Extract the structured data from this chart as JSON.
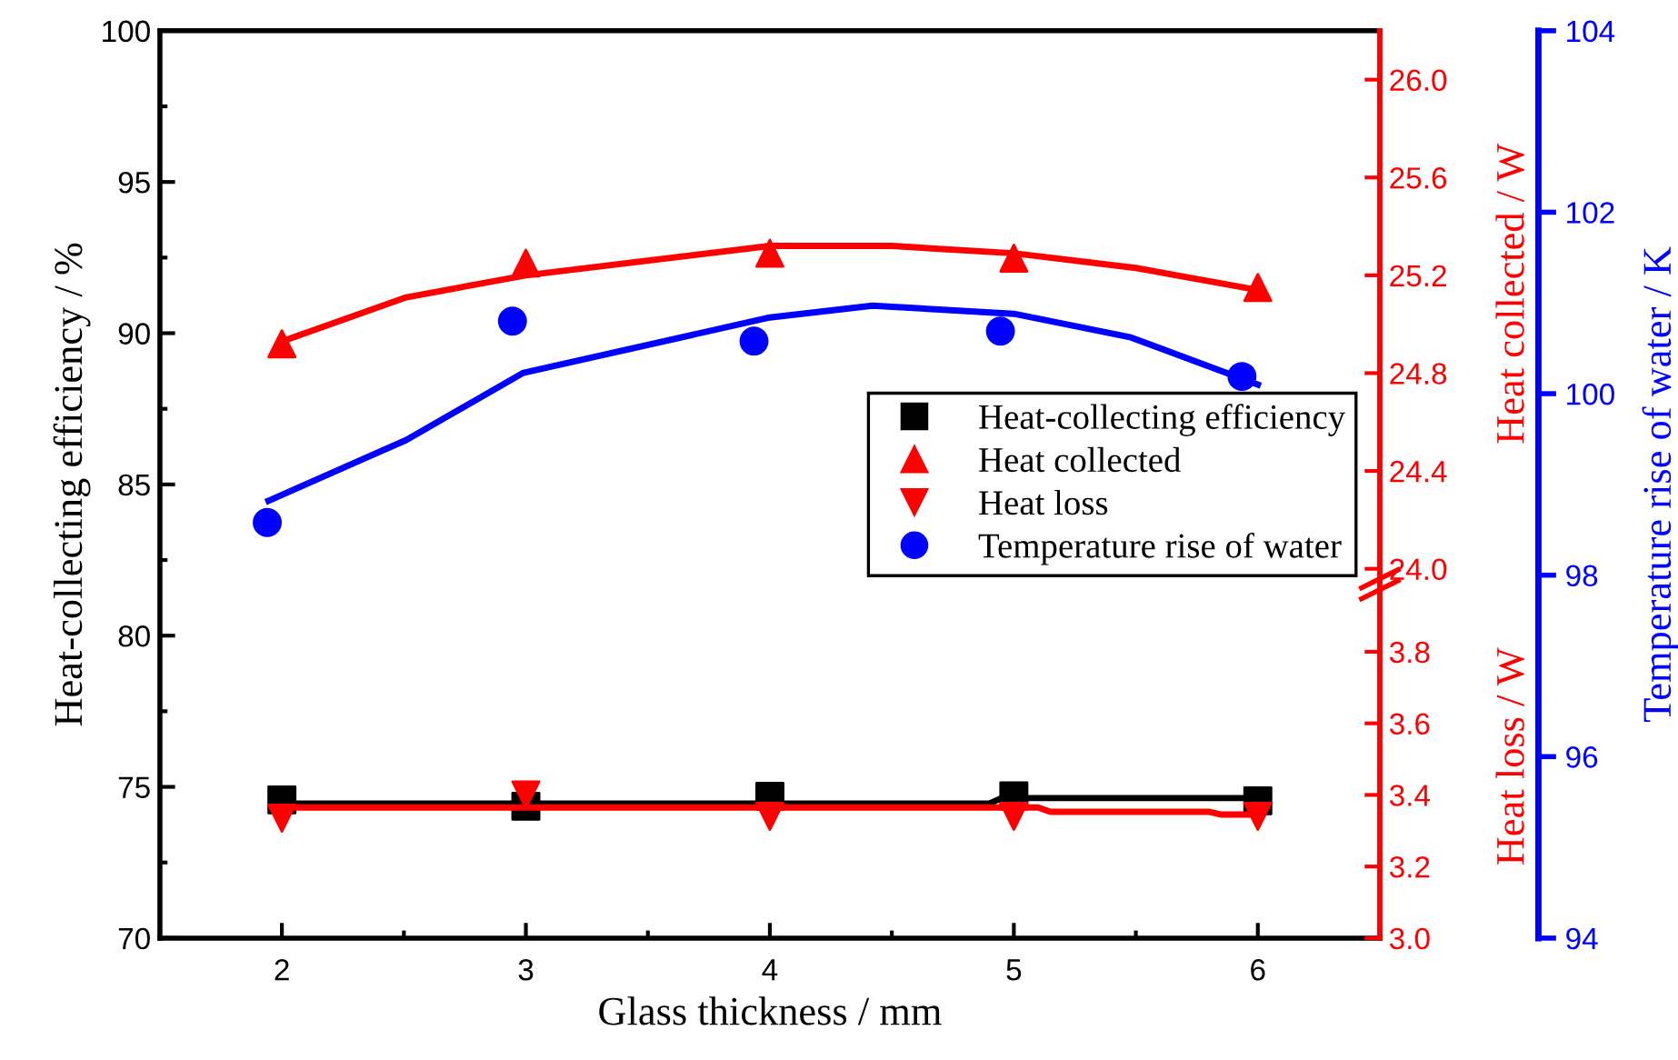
{
  "chart_data": [
    {
      "type": "scatter",
      "xlabel": "Glass thickness / mm",
      "ylabel": "Heat-collecting efficiency / %",
      "y2label": "Heat collected / W",
      "y3label": "Temperature rise of water / K",
      "xlim": [
        1.5,
        6.5
      ],
      "xticks": [
        2,
        {
          "value": 2.5,
          "label": null
        },
        3,
        {
          "value": 3.5,
          "label": null
        },
        4,
        {
          "value": 4.5,
          "label": null
        },
        5,
        {
          "value": 5.5,
          "label": null
        },
        6
      ],
      "ylim": [
        70,
        100
      ],
      "yticks": [
        70,
        {
          "value": 72.5,
          "label": null
        },
        75,
        {
          "value": 77.5,
          "label": null
        },
        80,
        {
          "value": 82.5,
          "label": null
        },
        85,
        {
          "value": 87.5,
          "label": null
        },
        90,
        {
          "value": 92.5,
          "label": null
        },
        95,
        {
          "value": 97.5,
          "label": null
        },
        100
      ],
      "y2lim": [
        22.49,
        26.2
      ],
      "y2ticks": [
        {
          "value": 24,
          "label": "24.0"
        },
        24.4,
        24.8,
        25.2,
        25.6,
        {
          "value": 26,
          "label": "26.0"
        }
      ],
      "y3lim": [
        94,
        104
      ],
      "y3ticks": [
        94,
        96,
        98,
        100,
        102,
        104
      ],
      "legend": "center right",
      "series": [
        {
          "name": "Heat-collecting efficiency",
          "type": "scatter",
          "marker": "square",
          "color": "#000000",
          "x": [
            2,
            3,
            4,
            5,
            6
          ],
          "values": [
            74.57,
            74.36,
            74.69,
            74.7,
            74.54
          ]
        },
        {
          "name": "Heat collected",
          "type": "scatter",
          "marker": "triangle",
          "color": "#ff0000",
          "axis": "y2",
          "x": [
            2,
            3,
            4,
            5,
            6
          ],
          "values": [
            24.92,
            25.25,
            25.29,
            25.27,
            25.15
          ]
        },
        {
          "name": "Temperature rise of water",
          "type": "scatter",
          "marker": "circle",
          "color": "#0000ff",
          "axis": "y3",
          "x": [
            1.94,
            2.945,
            3.935,
            4.945,
            5.935
          ],
          "values": [
            98.58,
            100.8,
            100.58,
            100.69,
            100.19
          ]
        },
        {
          "type": "line",
          "color": "#000000",
          "x": [
            2,
            4.9,
            4.95,
            6
          ],
          "values": [
            74.45,
            74.45,
            74.63,
            74.63
          ]
        },
        {
          "type": "line",
          "color": "#ff0000",
          "axis": "y2",
          "x": [
            2,
            2.51,
            3,
            4,
            4.5,
            5,
            5.5,
            6
          ],
          "values": [
            24.93,
            25.11,
            25.2,
            25.32,
            25.32,
            25.29,
            25.23,
            25.14
          ]
        },
        {
          "type": "line",
          "color": "#0000ff",
          "axis": "y3",
          "x": [
            1.945,
            2.51,
            2.99,
            4,
            4.42,
            5,
            5.48,
            6
          ],
          "values": [
            98.82,
            99.49,
            100.23,
            100.84,
            100.97,
            100.88,
            100.62,
            100.1
          ]
        }
      ]
    },
    {
      "type": "scatter",
      "ylabel": "Heat loss / W",
      "xlim": [
        1.5,
        6.5
      ],
      "ylim": [
        3.0,
        5.535
      ],
      "yticks": [
        {
          "value": 3,
          "label": "3.0"
        },
        3.2,
        3.4,
        3.6,
        3.8
      ],
      "tick_labels": "y",
      "series": [
        {
          "name": "Heat loss",
          "type": "scatter",
          "marker": "triangle_down",
          "color": "#ff0000",
          "x": [
            2,
            3,
            4,
            5,
            6
          ],
          "values": [
            3.335,
            3.4,
            3.34,
            3.34,
            3.34
          ]
        },
        {
          "type": "line",
          "color": "#ff0000",
          "x": [
            2,
            5.1,
            5.15,
            5.8,
            5.85,
            6
          ],
          "values": [
            3.365,
            3.365,
            3.353,
            3.353,
            3.345,
            3.345
          ]
        }
      ]
    }
  ]
}
